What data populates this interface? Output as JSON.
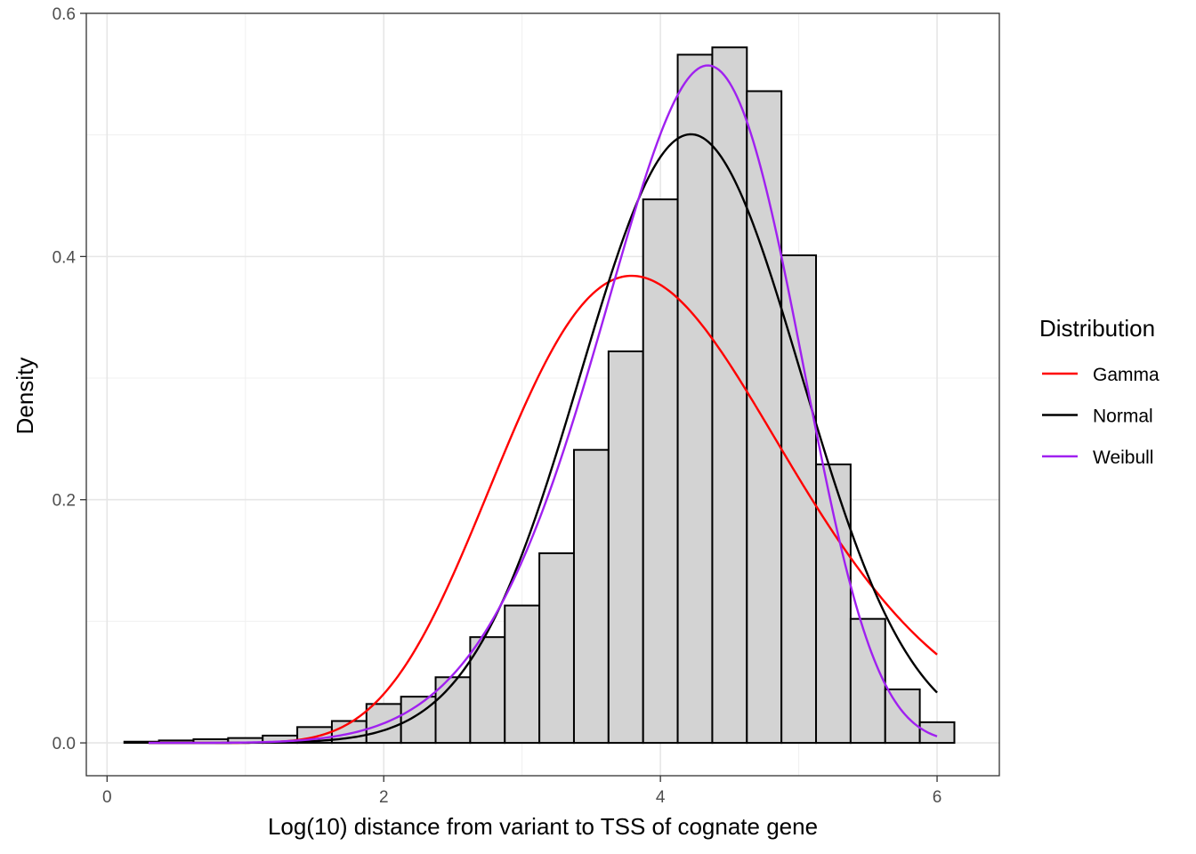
{
  "chart_data": {
    "type": "histogram",
    "xlabel": "Log(10) distance from variant to TSS of cognate gene",
    "ylabel": "Density",
    "xlim": [
      -0.15,
      6.45
    ],
    "ylim": [
      -0.027,
      0.6
    ],
    "x_ticks": [
      0,
      2,
      4,
      6
    ],
    "x_tick_labels": [
      "0",
      "2",
      "4",
      "6"
    ],
    "y_ticks": [
      0.0,
      0.2,
      0.4,
      0.6
    ],
    "y_tick_labels": [
      "0.0",
      "0.2",
      "0.4",
      "0.6"
    ],
    "grid": true,
    "bin_width": 0.25,
    "bins": [
      {
        "x0": 0.125,
        "x1": 0.375,
        "density": 0.001
      },
      {
        "x0": 0.375,
        "x1": 0.625,
        "density": 0.002
      },
      {
        "x0": 0.625,
        "x1": 0.875,
        "density": 0.003
      },
      {
        "x0": 0.875,
        "x1": 1.125,
        "density": 0.004
      },
      {
        "x0": 1.125,
        "x1": 1.375,
        "density": 0.006
      },
      {
        "x0": 1.375,
        "x1": 1.625,
        "density": 0.013
      },
      {
        "x0": 1.625,
        "x1": 1.875,
        "density": 0.018
      },
      {
        "x0": 1.875,
        "x1": 2.125,
        "density": 0.032
      },
      {
        "x0": 2.125,
        "x1": 2.375,
        "density": 0.038
      },
      {
        "x0": 2.375,
        "x1": 2.625,
        "density": 0.054
      },
      {
        "x0": 2.625,
        "x1": 2.875,
        "density": 0.087
      },
      {
        "x0": 2.875,
        "x1": 3.125,
        "density": 0.113
      },
      {
        "x0": 3.125,
        "x1": 3.375,
        "density": 0.156
      },
      {
        "x0": 3.375,
        "x1": 3.625,
        "density": 0.241
      },
      {
        "x0": 3.625,
        "x1": 3.875,
        "density": 0.322
      },
      {
        "x0": 3.875,
        "x1": 4.125,
        "density": 0.447
      },
      {
        "x0": 4.125,
        "x1": 4.375,
        "density": 0.566
      },
      {
        "x0": 4.375,
        "x1": 4.625,
        "density": 0.572
      },
      {
        "x0": 4.625,
        "x1": 4.875,
        "density": 0.536
      },
      {
        "x0": 4.875,
        "x1": 5.125,
        "density": 0.401
      },
      {
        "x0": 5.125,
        "x1": 5.375,
        "density": 0.229
      },
      {
        "x0": 5.375,
        "x1": 5.625,
        "density": 0.102
      },
      {
        "x0": 5.625,
        "x1": 5.875,
        "density": 0.044
      },
      {
        "x0": 5.875,
        "x1": 6.125,
        "density": 0.017
      }
    ],
    "legend": {
      "title": "Distribution",
      "position": "right"
    },
    "series": [
      {
        "name": "Gamma",
        "color": "#ff0000",
        "dist": "gamma",
        "shape": 14.5,
        "rate": 3.56,
        "x_range": [
          0.3,
          6.0
        ]
      },
      {
        "name": "Normal",
        "color": "#000000",
        "dist": "normal",
        "mean": 4.22,
        "sd": 0.797,
        "x_range": [
          0.3,
          6.0
        ]
      },
      {
        "name": "Weibull",
        "color": "#a020f0",
        "dist": "weibull",
        "shape": 6.66,
        "scale": 4.45,
        "x_range": [
          0.3,
          6.0
        ]
      }
    ]
  }
}
